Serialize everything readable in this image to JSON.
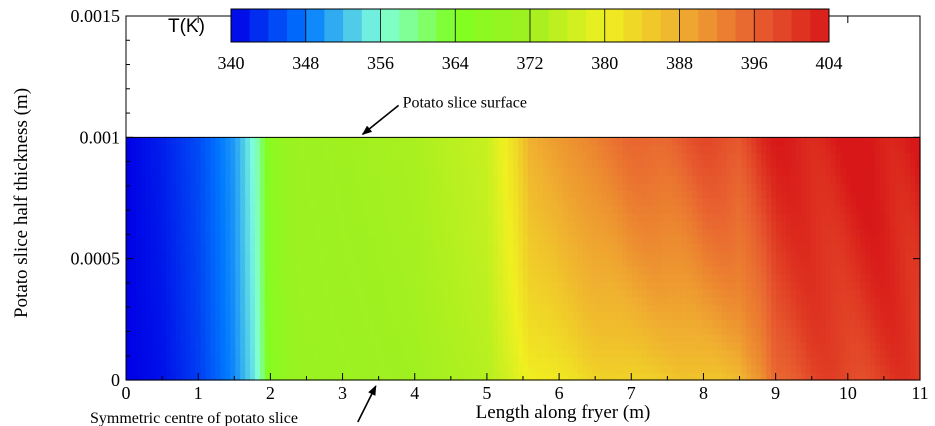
{
  "chart_data": {
    "type": "heatmap",
    "title": "",
    "xlabel": "Length along fryer (m)",
    "ylabel": "Potato slice half thickness (m)",
    "xlim": [
      0,
      11
    ],
    "ylim": [
      0,
      0.0015
    ],
    "data_ylim": [
      0,
      0.001
    ],
    "x_ticks": [
      0,
      1,
      2,
      3,
      4,
      5,
      6,
      7,
      8,
      9,
      10,
      11
    ],
    "x_tick_labels": [
      "0",
      "1",
      "2",
      "3",
      "4",
      "5",
      "6",
      "7",
      "8",
      "9",
      "10",
      "11"
    ],
    "y_ticks": [
      0,
      0.0005,
      0.001,
      0.0015
    ],
    "y_tick_labels": [
      "0",
      "0.0005",
      "0.001",
      "0.0015"
    ],
    "colorbar": {
      "label": "T(K)",
      "min": 340,
      "max": 404,
      "ticks": [
        340,
        348,
        356,
        364,
        372,
        380,
        388,
        396,
        404
      ],
      "tick_labels": [
        "340",
        "348",
        "356",
        "364",
        "372",
        "380",
        "388",
        "396",
        "404"
      ],
      "colors": [
        "#0000e6",
        "#0078ff",
        "#80ffdc",
        "#80ff20",
        "#a0f020",
        "#f0f020",
        "#f0b030",
        "#e86030",
        "#d81818"
      ]
    },
    "annotations": [
      {
        "id": "surface",
        "text": "Potato slice surface",
        "x": 3.25,
        "y": 0.001
      },
      {
        "id": "centre",
        "text": "Symmetric centre of potato slice",
        "x": 3.35,
        "y": 0
      }
    ],
    "temperature_profile": {
      "surface_y": 0.001,
      "center_y": 0,
      "x": [
        0,
        0.5,
        1,
        1.5,
        1.8,
        2,
        2.3,
        3,
        4,
        5,
        5.4,
        5.6,
        6,
        6.5,
        7,
        7.5,
        8,
        8.5,
        8.8,
        9,
        9.5,
        10,
        11
      ],
      "T_surface": [
        340,
        342,
        345,
        350,
        357,
        367,
        371,
        372,
        373,
        376,
        383,
        388,
        390,
        393,
        395,
        396,
        398,
        398,
        402,
        403,
        403,
        404,
        404
      ],
      "T_center": [
        340,
        341,
        344,
        349,
        355,
        366,
        370,
        371,
        372,
        374,
        378,
        380,
        381,
        383,
        384,
        384,
        386,
        386,
        390,
        396,
        398,
        399,
        400
      ]
    }
  }
}
